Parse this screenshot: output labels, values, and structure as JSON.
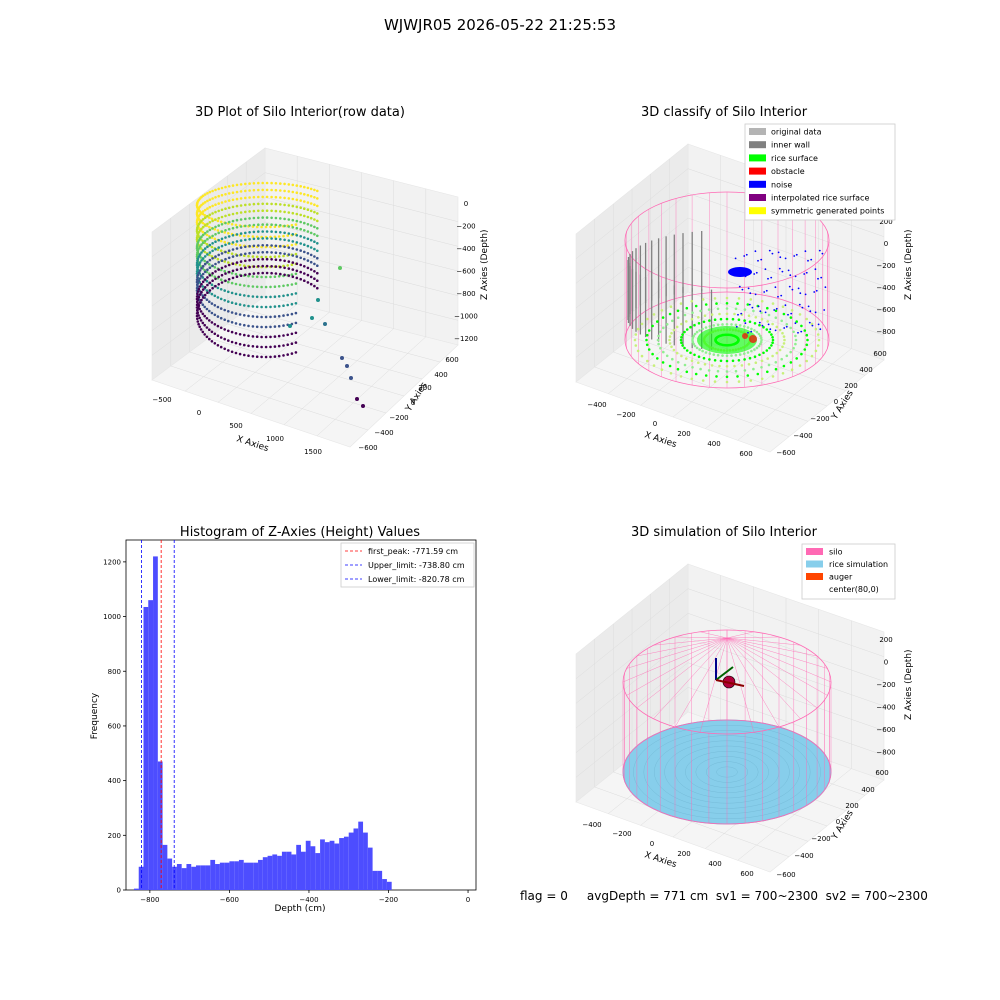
{
  "figure": {
    "title": "WJWJR05 2026-05-22 21:25:53",
    "footer": "flag = 0     avgDepth = 771 cm  sv1 = 700~2300  sv2 = 700~2300"
  },
  "colors": {
    "viridis_low": "#440154",
    "viridis_mid": "#21918c",
    "viridis_high": "#fde725",
    "hist_bar": "#4d4dff",
    "original": "#b4b4b4",
    "inner_wall": "#808080",
    "rice_surface": "#00ff00",
    "obstacle": "#ff0000",
    "noise": "#0000ff",
    "interpolated": "#800080",
    "symmetric": "#ffff00",
    "silo": "#ff69b4",
    "rice_sim": "#87ceeb",
    "auger": "#ff4500"
  },
  "chart_data": [
    {
      "type": "scatter",
      "title": "3D Plot of Silo Interior(row data)",
      "xlabel": "X Axies",
      "ylabel": "Y Axies",
      "zlabel": "Z Axies (Depth)",
      "x_ticks": [
        "−500",
        "0",
        "500",
        "1000",
        "1500"
      ],
      "y_ticks": [
        "600",
        "400",
        "200",
        "0",
        "−200",
        "−400",
        "−600"
      ],
      "z_ticks": [
        "0",
        "−200",
        "−400",
        "−600",
        "−800",
        "−1000",
        "−1200"
      ],
      "colormap": "viridis"
    },
    {
      "type": "scatter",
      "title": "3D classify of Silo Interior",
      "xlabel": "X Axies",
      "ylabel": "Y Axies",
      "zlabel": "Z Axies (Depth)",
      "x_ticks": [
        "−400",
        "−200",
        "0",
        "200",
        "400",
        "600"
      ],
      "y_ticks": [
        "600",
        "400",
        "200",
        "0",
        "−200",
        "−400",
        "−600"
      ],
      "z_ticks": [
        "200",
        "0",
        "−200",
        "−400",
        "−600",
        "−800"
      ],
      "legend": [
        "original data",
        "inner wall",
        "rice surface",
        "obstacle",
        "noise",
        "interpolated rice surface",
        "symmetric generated points"
      ],
      "legend_position": "top-right"
    },
    {
      "type": "bar",
      "title": "Histogram of Z-Axies (Height) Values",
      "xlabel": "Depth (cm)",
      "ylabel": "Frequency",
      "xlim": [
        -860,
        20
      ],
      "ylim": [
        0,
        1280
      ],
      "x_ticks": [
        "−800",
        "−600",
        "−400",
        "−200",
        "0"
      ],
      "x_tick_values": [
        -800,
        -600,
        -400,
        -200,
        0
      ],
      "y_ticks": [
        "0",
        "200",
        "400",
        "600",
        "800",
        "1000",
        "1200"
      ],
      "y_tick_values": [
        0,
        200,
        400,
        600,
        800,
        1000,
        1200
      ],
      "bin_start": -840,
      "bin_width": 12,
      "values": [
        5,
        85,
        1035,
        1060,
        1220,
        470,
        165,
        115,
        85,
        95,
        80,
        95,
        85,
        90,
        90,
        90,
        110,
        95,
        100,
        100,
        105,
        105,
        110,
        100,
        100,
        100,
        110,
        120,
        125,
        130,
        125,
        140,
        140,
        130,
        165,
        140,
        180,
        160,
        135,
        185,
        175,
        180,
        170,
        190,
        195,
        210,
        225,
        250,
        210,
        155,
        70,
        70,
        40,
        30
      ],
      "lines": [
        {
          "label": "first_peak: -771.59 cm",
          "x": -771.59,
          "color": "#ff0000"
        },
        {
          "label": "Upper_limit: -738.80 cm",
          "x": -738.8,
          "color": "#0000ff"
        },
        {
          "label": "Lower_limit: -820.78 cm",
          "x": -820.78,
          "color": "#0000ff"
        }
      ],
      "legend_position": "top-right"
    },
    {
      "type": "scatter",
      "title": "3D simulation of Silo Interior",
      "xlabel": "X Axies",
      "ylabel": "Y Axies",
      "zlabel": "Z Axies (Depth)",
      "x_ticks": [
        "−400",
        "−200",
        "0",
        "200",
        "400",
        "600"
      ],
      "y_ticks": [
        "600",
        "400",
        "200",
        "0",
        "−200",
        "−400",
        "−600"
      ],
      "z_ticks": [
        "200",
        "0",
        "−200",
        "−400",
        "−600",
        "−800"
      ],
      "legend": [
        "silo",
        "rice simulation",
        "auger",
        "center(80,0)"
      ],
      "legend_position": "top-right"
    }
  ]
}
